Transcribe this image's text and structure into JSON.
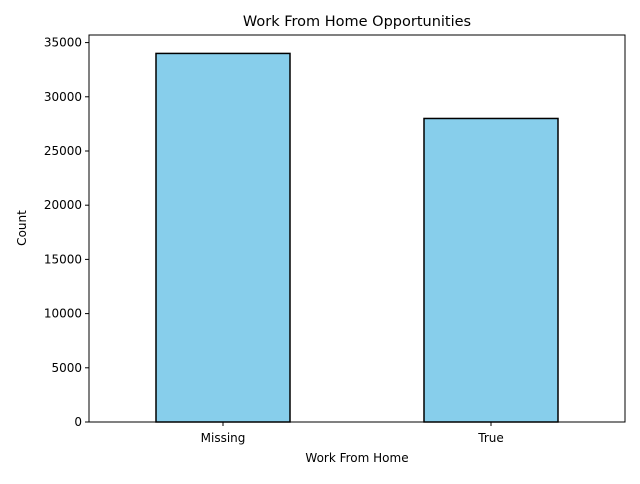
{
  "chart_data": {
    "type": "bar",
    "title": "Work From Home Opportunities",
    "xlabel": "Work From Home",
    "ylabel": "Count",
    "categories": [
      "Missing",
      "True"
    ],
    "values": [
      34000,
      28000
    ],
    "ylim": [
      0,
      35700
    ],
    "yticks": [
      0,
      5000,
      10000,
      15000,
      20000,
      25000,
      30000,
      35000
    ],
    "grid": false,
    "legend": "none",
    "bar_color": "#87ceeb",
    "edge_color": "#000000"
  }
}
